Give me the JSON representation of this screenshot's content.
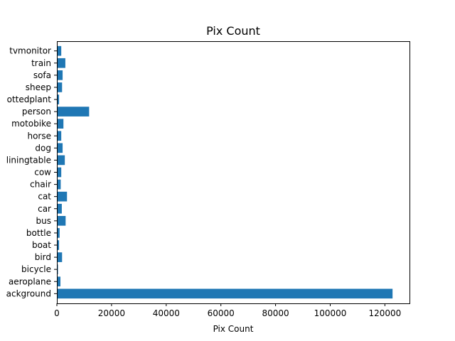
{
  "chart_data": {
    "type": "bar",
    "orientation": "horizontal",
    "title": "Pix Count",
    "xlabel": "Pix Count",
    "ylabel": "",
    "xlim": [
      0,
      129000
    ],
    "xticks": [
      0,
      20000,
      40000,
      60000,
      80000,
      100000,
      120000
    ],
    "xtick_labels": [
      "0",
      "20000",
      "40000",
      "60000",
      "80000",
      "100000",
      "120000"
    ],
    "grid": false,
    "bar_color": "#1f77b4",
    "categories": [
      "background",
      "aeroplane",
      "bicycle",
      "bird",
      "boat",
      "bottle",
      "bus",
      "car",
      "cat",
      "chair",
      "cow",
      "diningtable",
      "dog",
      "horse",
      "motobike",
      "person",
      "pottedplant",
      "sheep",
      "sofa",
      "train",
      "tvmonitor"
    ],
    "category_labels": [
      "ackground",
      "aeroplane",
      "bicycle",
      "bird",
      "boat",
      "bottle",
      "bus",
      "car",
      "cat",
      "chair",
      "cow",
      "liningtable",
      "dog",
      "horse",
      "motobike",
      "person",
      "ottedplant",
      "sheep",
      "sofa",
      "train",
      "tvmonitor"
    ],
    "values": [
      122800,
      1300,
      400,
      1900,
      800,
      1000,
      3200,
      1800,
      3700,
      1400,
      1600,
      2900,
      2100,
      1600,
      2400,
      11800,
      800,
      1900,
      2100,
      3100,
      1600
    ]
  }
}
